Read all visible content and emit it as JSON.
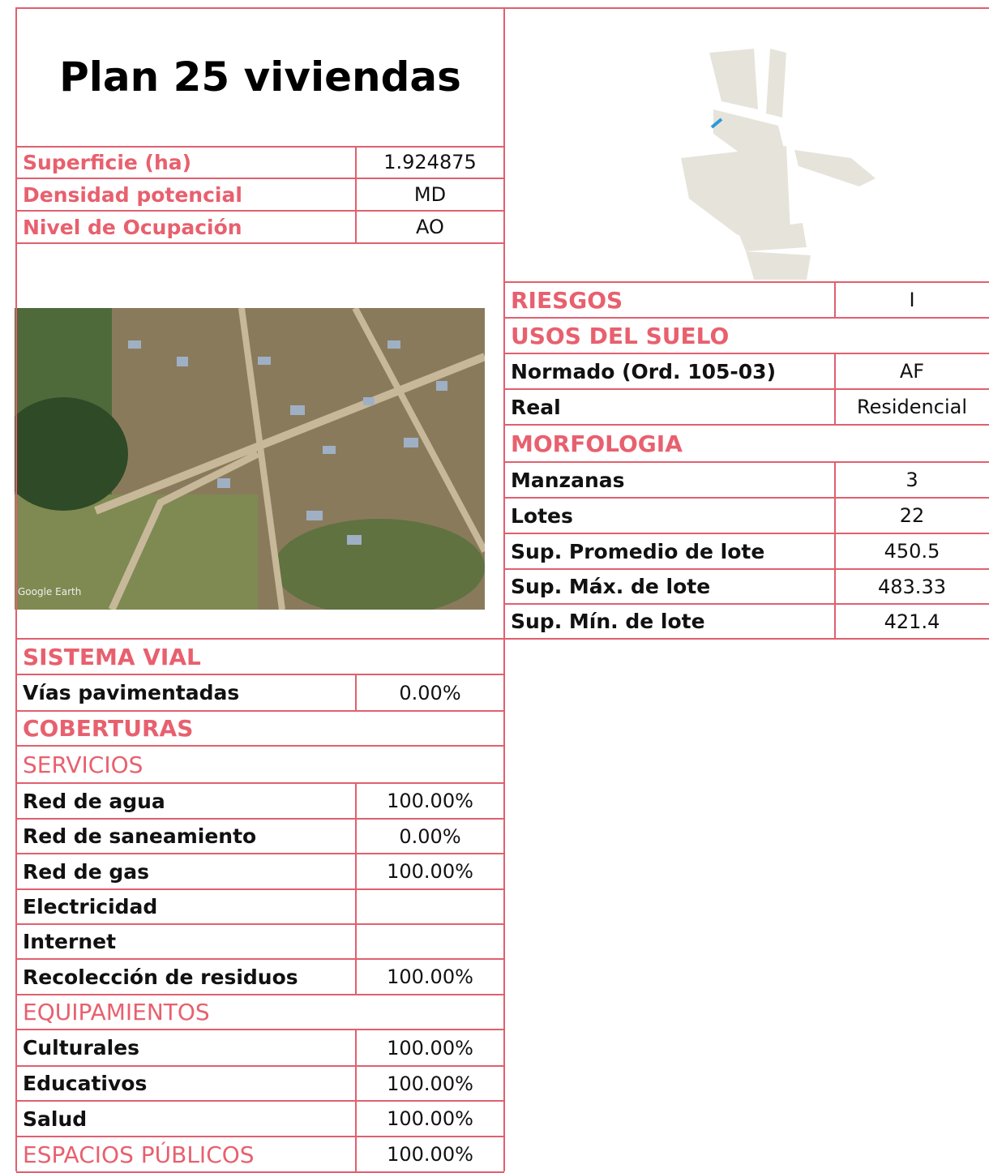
{
  "title": "Plan 25 viviendas",
  "summary": [
    {
      "label": "Superficie (ha)",
      "value": "1.924875"
    },
    {
      "label": "Densidad potencial",
      "value": "MD"
    },
    {
      "label": "Nivel de Ocupación",
      "value": "AO"
    }
  ],
  "image": {
    "watermark": "Google Earth"
  },
  "left_table": [
    {
      "style": "section",
      "label": "SISTEMA VIAL"
    },
    {
      "style": "item",
      "label": "Vías pavimentadas",
      "value": "0.00%"
    },
    {
      "style": "section",
      "label": "COBERTURAS"
    },
    {
      "style": "subsection",
      "label": "SERVICIOS"
    },
    {
      "style": "item",
      "label": "Red de agua",
      "value": "100.00%"
    },
    {
      "style": "item",
      "label": "Red de saneamiento",
      "value": "0.00%"
    },
    {
      "style": "item",
      "label": "Red de gas",
      "value": "100.00%"
    },
    {
      "style": "item",
      "label": "Electricidad"
    },
    {
      "style": "item",
      "label": "Internet"
    },
    {
      "style": "item",
      "label": "Recolección de residuos",
      "value": "100.00%"
    },
    {
      "style": "subsection",
      "label": "EQUIPAMIENTOS"
    },
    {
      "style": "item",
      "label": "Culturales",
      "value": "100.00%"
    },
    {
      "style": "item",
      "label": "Educativos",
      "value": "100.00%"
    },
    {
      "style": "item",
      "label": "Salud",
      "value": "100.00%"
    },
    {
      "style": "subsection",
      "label": "ESPACIOS PÚBLICOS",
      "value": "100.00%"
    }
  ],
  "right_table": [
    {
      "style": "section",
      "label": "RIESGOS",
      "value": "I"
    },
    {
      "style": "section",
      "label": "USOS DEL SUELO"
    },
    {
      "style": "item",
      "label": "Normado (Ord. 105-03)",
      "value": "AF"
    },
    {
      "style": "item",
      "label": "Real",
      "value": "Residencial"
    },
    {
      "style": "section",
      "label": "MORFOLOGIA"
    },
    {
      "style": "item",
      "label": "Manzanas",
      "value": "3"
    },
    {
      "style": "item",
      "label": "Lotes",
      "value": "22"
    },
    {
      "style": "item",
      "label": "Sup. Promedio de lote",
      "value": "450.5"
    },
    {
      "style": "item",
      "label": "Sup. Máx. de lote",
      "value": "483.33"
    },
    {
      "style": "item",
      "label": "Sup. Mín. de lote",
      "value": "421.4"
    }
  ]
}
